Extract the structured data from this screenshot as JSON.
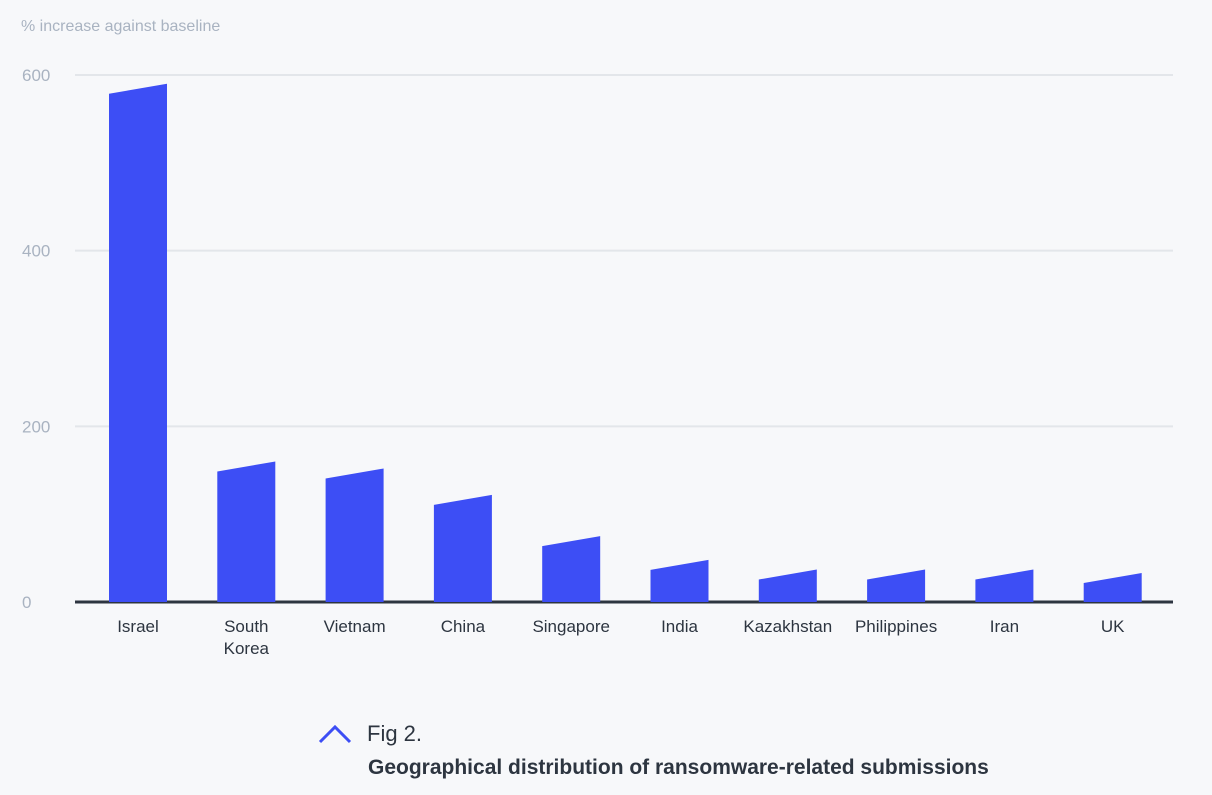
{
  "chart_data": {
    "type": "bar",
    "ylabel": "% increase against baseline",
    "yticks": [
      "600",
      "400",
      "200",
      "0"
    ],
    "ytick_values": [
      600,
      400,
      200,
      0
    ],
    "ylim": [
      0,
      600
    ],
    "grid": true,
    "categories": [
      "Israel",
      "South Korea",
      "Vietnam",
      "China",
      "Singapore",
      "India",
      "Kazakhstan",
      "Philippines",
      "Iran",
      "UK"
    ],
    "values": [
      590,
      160,
      152,
      122,
      75,
      48,
      37,
      37,
      37,
      33
    ],
    "bar_color": "#3d4ef5"
  },
  "caption": {
    "fig_label": "Fig 2.",
    "title": "Geographical distribution of ransomware-related submissions",
    "icon": "chevron-up-icon",
    "accent": "#3d4ef5"
  }
}
